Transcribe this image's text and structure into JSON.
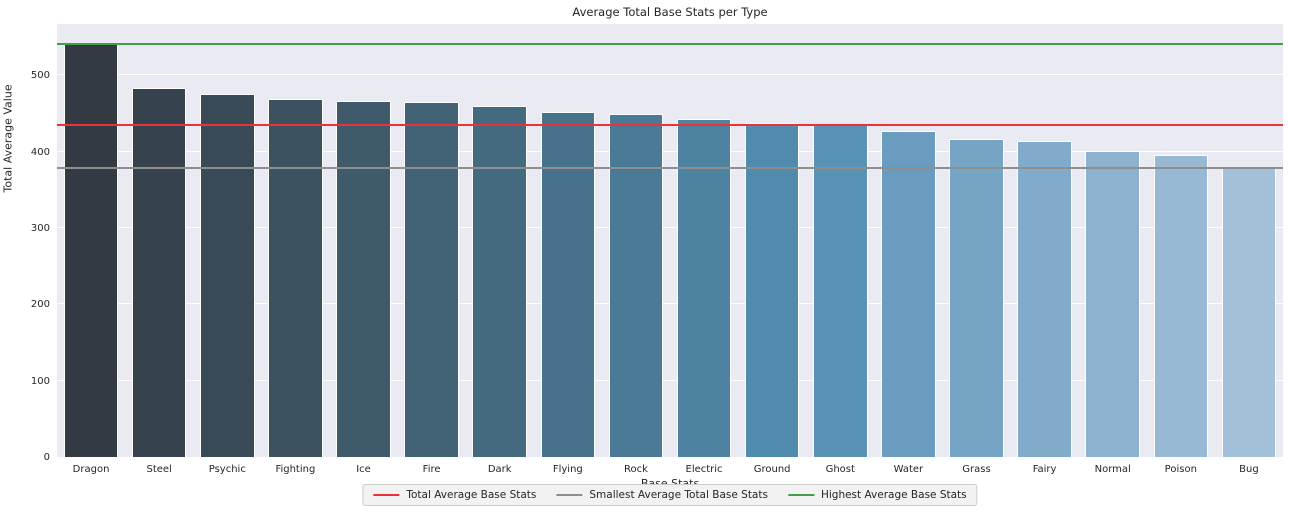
{
  "title": "Average Total Base Stats per Type",
  "colors": {
    "figure_bg": "#ffffff",
    "plot_bg": "#eaeaf2",
    "grid": "#ffffff",
    "text": "#262626",
    "bar_edge": "#ffffff",
    "legend_bg": "#f2f2f2",
    "legend_border": "#cccccc",
    "red_line": "#ea3238",
    "gray_line": "#8e8e8e",
    "green_line": "#3fa046"
  },
  "chart_data": {
    "type": "bar",
    "title": "Average Total Base Stats per Type",
    "xlabel": "Base Stats",
    "ylabel": "Total Average Value",
    "ylim": [
      0,
      567
    ],
    "yticks": [
      0,
      100,
      200,
      300,
      400,
      500
    ],
    "grid": true,
    "legend_position": "lower center",
    "categories": [
      "Dragon",
      "Steel",
      "Psychic",
      "Fighting",
      "Ice",
      "Fire",
      "Dark",
      "Flying",
      "Rock",
      "Electric",
      "Ground",
      "Ghost",
      "Water",
      "Grass",
      "Fairy",
      "Normal",
      "Poison",
      "Bug"
    ],
    "values": [
      541,
      483,
      475,
      469,
      466,
      465,
      459,
      452,
      449,
      442,
      438,
      435,
      427,
      416,
      414,
      401,
      395,
      379
    ],
    "bar_colors": [
      "#333a44",
      "#36424d",
      "#394a57",
      "#3c5261",
      "#3f5a6b",
      "#426275",
      "#446a80",
      "#47728b",
      "#4a7a96",
      "#4d82a1",
      "#508aac",
      "#5992b4",
      "#699cbe",
      "#76a4c5",
      "#81abca",
      "#8cb2cf",
      "#97b9d4",
      "#a2c1d9"
    ],
    "reference_lines": [
      {
        "label": "Total Average Base Stats",
        "value": 435,
        "color": "#ea3238"
      },
      {
        "label": "Smallest Average Total Base Stats",
        "value": 379,
        "color": "#8e8e8e"
      },
      {
        "label": "Highest Average Base Stats",
        "value": 541,
        "color": "#3fa046"
      }
    ]
  }
}
